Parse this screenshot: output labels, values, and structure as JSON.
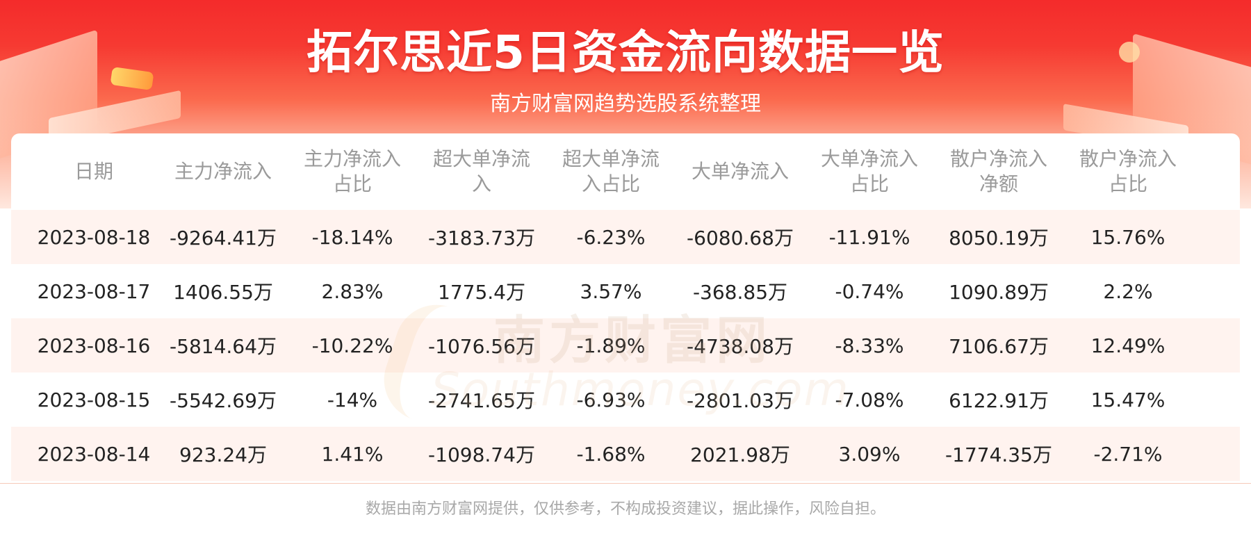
{
  "header": {
    "title": "拓尔思近5日资金流向数据一览",
    "subtitle": "南方财富网趋势选股系统整理"
  },
  "watermark": {
    "cn": "南方财富网",
    "en": "Southmoney.com"
  },
  "footer": {
    "disclaimer": "数据由南方财富网提供，仅供参考，不构成投资建议，据此操作，风险自担。"
  },
  "colors": {
    "header_red": "#f42b2b",
    "row_alt": "#fff3ef",
    "header_text": "#9a9a9a"
  },
  "chart_data": {
    "type": "table",
    "title": "拓尔思近5日资金流向数据一览",
    "columns": [
      "日期",
      "主力净流入",
      "主力净流入占比",
      "超大单净流入",
      "超大单净流入占比",
      "大单净流入",
      "大单净流入占比",
      "散户净流入净额",
      "散户净流入占比"
    ],
    "rows": [
      [
        "2023-08-18",
        "-9264.41万",
        "-18.14%",
        "-3183.73万",
        "-6.23%",
        "-6080.68万",
        "-11.91%",
        "8050.19万",
        "15.76%"
      ],
      [
        "2023-08-17",
        "1406.55万",
        "2.83%",
        "1775.4万",
        "3.57%",
        "-368.85万",
        "-0.74%",
        "1090.89万",
        "2.2%"
      ],
      [
        "2023-08-16",
        "-5814.64万",
        "-10.22%",
        "-1076.56万",
        "-1.89%",
        "-4738.08万",
        "-8.33%",
        "7106.67万",
        "12.49%"
      ],
      [
        "2023-08-15",
        "-5542.69万",
        "-14%",
        "-2741.65万",
        "-6.93%",
        "-2801.03万",
        "-7.08%",
        "6122.91万",
        "15.47%"
      ],
      [
        "2023-08-14",
        "923.24万",
        "1.41%",
        "-1098.74万",
        "-1.68%",
        "2021.98万",
        "3.09%",
        "-1774.35万",
        "-2.71%"
      ]
    ]
  }
}
